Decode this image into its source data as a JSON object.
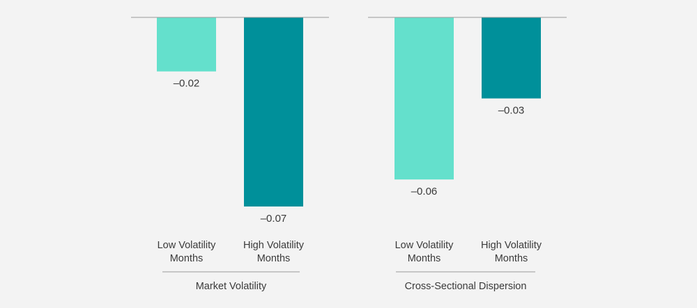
{
  "colors": {
    "background": "#f3f3f3",
    "low_volatility": "#64e0cc",
    "high_volatility": "#00909a",
    "axis_line": "#9a9a9a",
    "text": "#3a3a3a"
  },
  "chart_data": [
    {
      "type": "bar",
      "group_label": "Market Volatility",
      "categories": [
        "Low Volatility Months",
        "High Volatility Months"
      ],
      "category_lines": [
        [
          "Low Volatility",
          "Months"
        ],
        [
          "High Volatility",
          "Months"
        ]
      ],
      "values": [
        -0.02,
        -0.07
      ],
      "value_labels": [
        "–0.02",
        "–0.07"
      ],
      "ylim": [
        -0.07,
        0
      ],
      "grid": false
    },
    {
      "type": "bar",
      "group_label": "Cross-Sectional Dispersion",
      "categories": [
        "Low Volatility Months",
        "High Volatility Months"
      ],
      "category_lines": [
        [
          "Low Volatility",
          "Months"
        ],
        [
          "High Volatility",
          "Months"
        ]
      ],
      "values": [
        -0.06,
        -0.03
      ],
      "value_labels": [
        "–0.06",
        "–0.03"
      ],
      "ylim": [
        -0.07,
        0
      ],
      "grid": false
    }
  ]
}
